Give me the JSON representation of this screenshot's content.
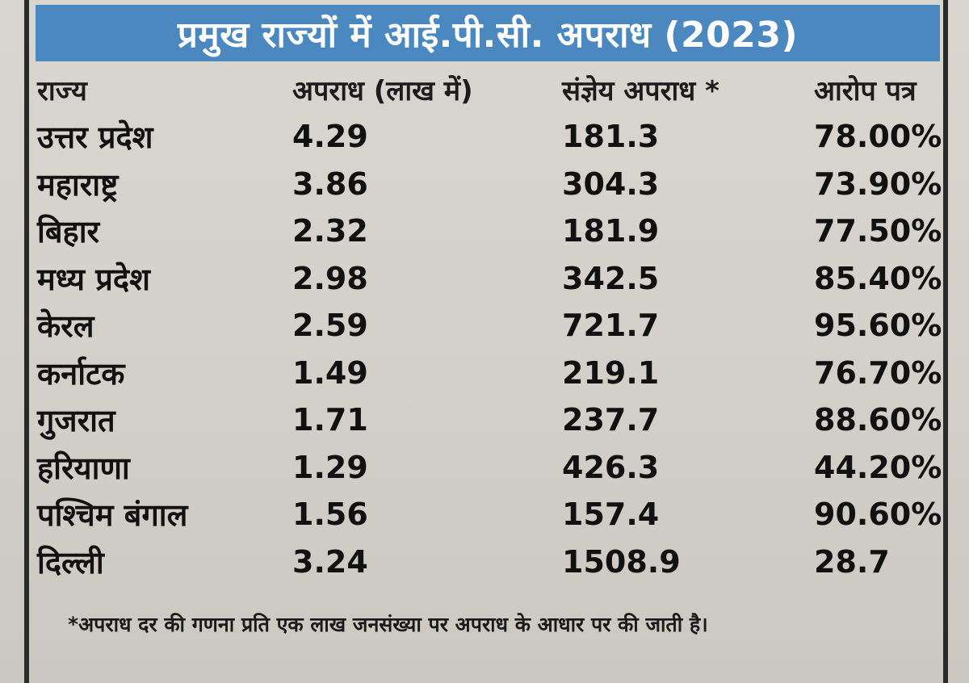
{
  "title": "प्रमुख राज्यों में आई.पी.सी. अपराध (2023)",
  "headers": {
    "state": "राज्य",
    "crimes": "अपराध (लाख में)",
    "cognizable": "संज्ञेय अपराध *",
    "chargesheet": "आरोप पत्र"
  },
  "rows": [
    {
      "state": "उत्तर प्रदेश",
      "crimes": "4.29",
      "cognizable": "181.3",
      "chargesheet": "78.00%"
    },
    {
      "state": "महाराष्ट्र",
      "crimes": "3.86",
      "cognizable": "304.3",
      "chargesheet": "73.90%"
    },
    {
      "state": "बिहार",
      "crimes": "2.32",
      "cognizable": "181.9",
      "chargesheet": "77.50%"
    },
    {
      "state": "मध्य प्रदेश",
      "crimes": "2.98",
      "cognizable": "342.5",
      "chargesheet": "85.40%"
    },
    {
      "state": "केरल",
      "crimes": "2.59",
      "cognizable": "721.7",
      "chargesheet": "95.60%"
    },
    {
      "state": "कर्नाटक",
      "crimes": "1.49",
      "cognizable": "219.1",
      "chargesheet": "76.70%"
    },
    {
      "state": "गुजरात",
      "crimes": "1.71",
      "cognizable": "237.7",
      "chargesheet": "88.60%"
    },
    {
      "state": "हरियाणा",
      "crimes": "1.29",
      "cognizable": "426.3",
      "chargesheet": "44.20%"
    },
    {
      "state": "पश्चिम बंगाल",
      "crimes": "1.56",
      "cognizable": "157.4",
      "chargesheet": "90.60%"
    },
    {
      "state": "दिल्ली",
      "crimes": "3.24",
      "cognizable": "1508.9",
      "chargesheet": "28.7"
    }
  ],
  "footnote": "*अपराध दर की गणना प्रति एक लाख जनसंख्या पर अपराध के आधार पर की जाती है।",
  "colors": {
    "title_bar": "#4b88c0",
    "title_text": "#ffffff",
    "paper": "#d3d1ca",
    "ink": "#111111"
  }
}
